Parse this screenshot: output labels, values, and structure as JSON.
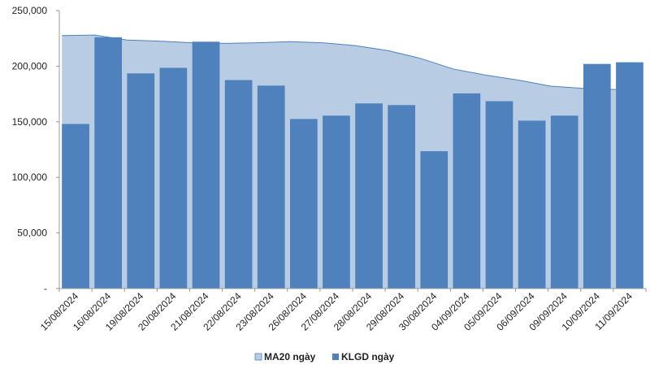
{
  "chart_data": {
    "type": "bar",
    "categories": [
      "15/08/2024",
      "16/08/2024",
      "19/08/2024",
      "20/08/2024",
      "21/08/2024",
      "22/08/2024",
      "23/08/2024",
      "26/08/2024",
      "27/08/2024",
      "28/08/2024",
      "29/08/2024",
      "30/08/2024",
      "04/09/2024",
      "05/09/2024",
      "06/09/2024",
      "09/09/2024",
      "10/09/2024",
      "11/09/2024"
    ],
    "series": [
      {
        "name": "MA20 ngày",
        "type": "area",
        "color": "#b8cce4",
        "line_color": "#4f81bd",
        "values": [
          227500,
          228000,
          223500,
          222500,
          221000,
          220500,
          221000,
          222000,
          221000,
          218500,
          214000,
          207000,
          197500,
          192000,
          187500,
          182000,
          180000,
          179000
        ]
      },
      {
        "name": "KLGD ngày",
        "type": "bar",
        "color": "#4f81bd",
        "values": [
          148000,
          226000,
          193500,
          198500,
          222000,
          187500,
          182500,
          152500,
          155500,
          166500,
          165000,
          123500,
          175500,
          168500,
          151000,
          155500,
          202000,
          203500
        ]
      }
    ],
    "y_ticks": [
      "-",
      "50,000",
      "100,000",
      "150,000",
      "200,000",
      "250,000"
    ],
    "ylim": [
      0,
      250000
    ],
    "legend_position": "bottom",
    "grid": false
  }
}
